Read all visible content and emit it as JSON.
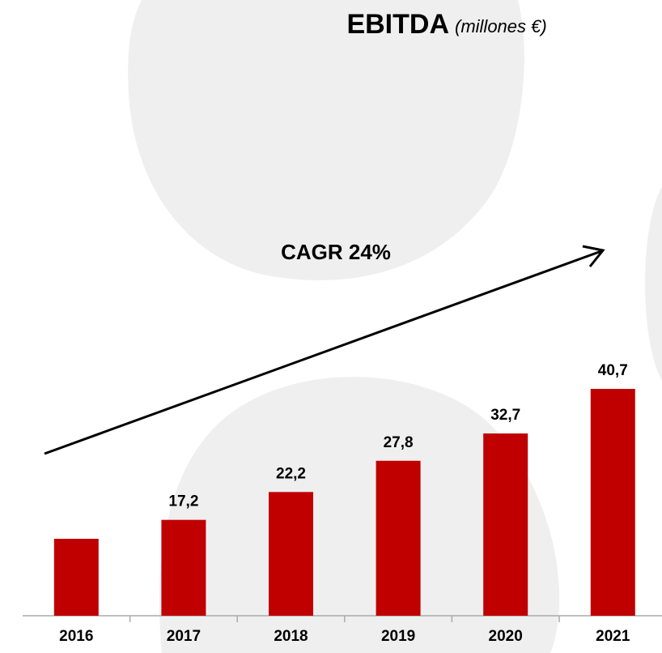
{
  "chart_data": {
    "type": "bar",
    "title": "EBITDA",
    "subtitle": "(millones €)",
    "annotation": "CAGR 24%",
    "categories": [
      "2016",
      "2017",
      "2018",
      "2019",
      "2020",
      "2021"
    ],
    "values": [
      13.8,
      17.2,
      22.2,
      27.8,
      32.7,
      40.7
    ],
    "value_labels": [
      null,
      "17,2",
      "22,2",
      "27,8",
      "32,7",
      "40,7"
    ],
    "color": "#c00000"
  }
}
